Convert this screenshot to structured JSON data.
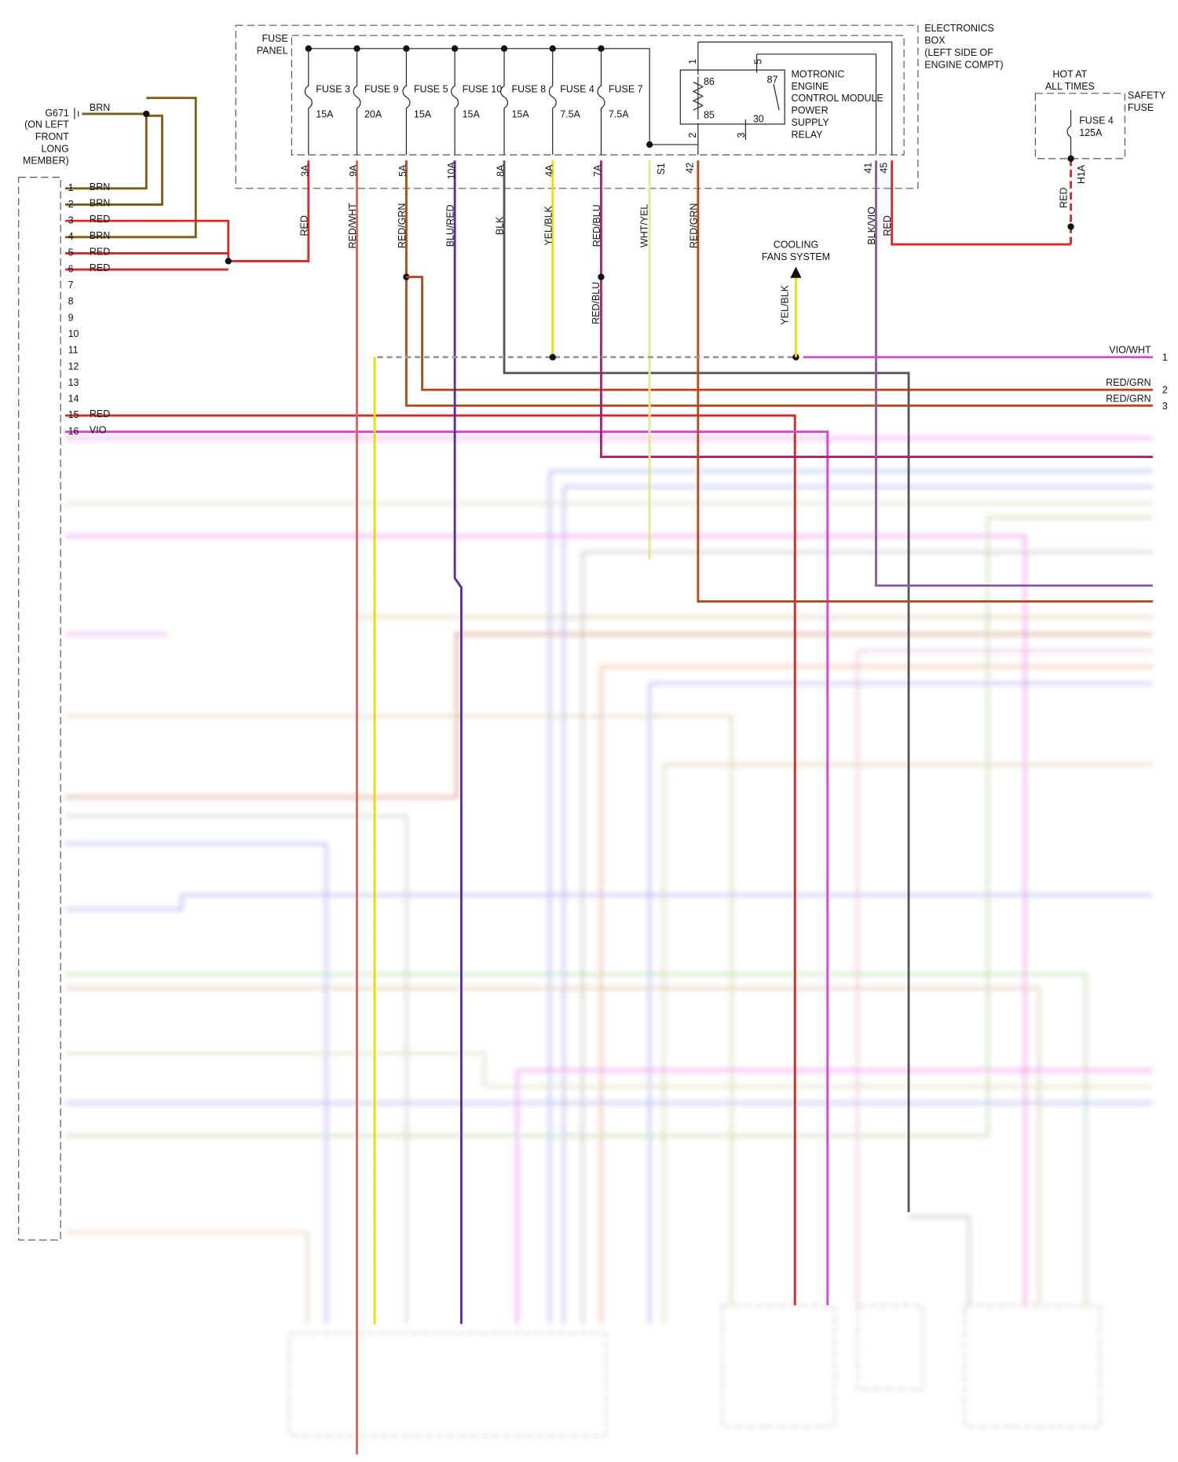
{
  "header": {
    "electronics_box": [
      "ELECTRONICS",
      "BOX",
      "(LEFT SIDE OF",
      "ENGINE COMPT)"
    ],
    "fuse_panel": [
      "FUSE",
      "PANEL"
    ]
  },
  "ground": {
    "id": "G671",
    "location": [
      "(ON LEFT",
      "FRONT",
      "LONG",
      "MEMBER)"
    ],
    "wire": "BRN"
  },
  "fuses": [
    {
      "name": "FUSE 3",
      "rating": "15A",
      "terminal": "3A",
      "wire": "RED"
    },
    {
      "name": "FUSE 9",
      "rating": "20A",
      "terminal": "9A",
      "wire": "RED/WHT"
    },
    {
      "name": "FUSE 5",
      "rating": "15A",
      "terminal": "5A",
      "wire": "RED/GRN"
    },
    {
      "name": "FUSE 10",
      "rating": "15A",
      "terminal": "10A",
      "wire": "BLU/RED"
    },
    {
      "name": "FUSE 8",
      "rating": "15A",
      "terminal": "8A",
      "wire": "BLK"
    },
    {
      "name": "FUSE 4",
      "rating": "7.5A",
      "terminal": "4A",
      "wire": "YEL/BLK"
    },
    {
      "name": "FUSE 7",
      "rating": "7.5A",
      "terminal": "7A",
      "wire": "RED/BLU"
    }
  ],
  "splice": {
    "id": "S1",
    "wire": "WHT/YEL"
  },
  "relay": {
    "label": [
      "MOTRONIC",
      "ENGINE",
      "CONTROL MODULE",
      "POWER",
      "SUPPLY",
      "RELAY"
    ],
    "pins": [
      "1",
      "86",
      "85",
      "2",
      "3",
      "30",
      "87",
      "5"
    ],
    "terminals": [
      {
        "id": "42",
        "wire": "RED/GRN"
      },
      {
        "id": "41",
        "wire": "BLK/VIO"
      },
      {
        "id": "45",
        "wire": "RED"
      }
    ]
  },
  "safety_fuse": {
    "hot": [
      "HOT AT",
      "ALL TIMES"
    ],
    "label": [
      "SAFETY",
      "FUSE"
    ],
    "name": "FUSE 4",
    "rating": "125A",
    "terminal": "H1A",
    "wire": "RED"
  },
  "red_blu_branch": "RED/BLU",
  "cooling_fans": {
    "label": [
      "COOLING",
      "FANS SYSTEM"
    ],
    "wire": "YEL/BLK"
  },
  "right_connector": [
    {
      "wire": "VIO/WHT",
      "pin": "1"
    },
    {
      "wire": "RED/GRN",
      "pin": "2"
    },
    {
      "wire": "RED/GRN",
      "pin": "3"
    }
  ],
  "left_connector": [
    {
      "pin": "1",
      "wire": "BRN"
    },
    {
      "pin": "2",
      "wire": "BRN"
    },
    {
      "pin": "3",
      "wire": "RED"
    },
    {
      "pin": "4",
      "wire": "BRN"
    },
    {
      "pin": "5",
      "wire": "RED"
    },
    {
      "pin": "6",
      "wire": "RED"
    },
    {
      "pin": "7"
    },
    {
      "pin": "8"
    },
    {
      "pin": "9"
    },
    {
      "pin": "10"
    },
    {
      "pin": "11"
    },
    {
      "pin": "12"
    },
    {
      "pin": "13"
    },
    {
      "pin": "14"
    },
    {
      "pin": "15",
      "wire": "RED"
    },
    {
      "pin": "16",
      "wire": "VIO"
    }
  ]
}
